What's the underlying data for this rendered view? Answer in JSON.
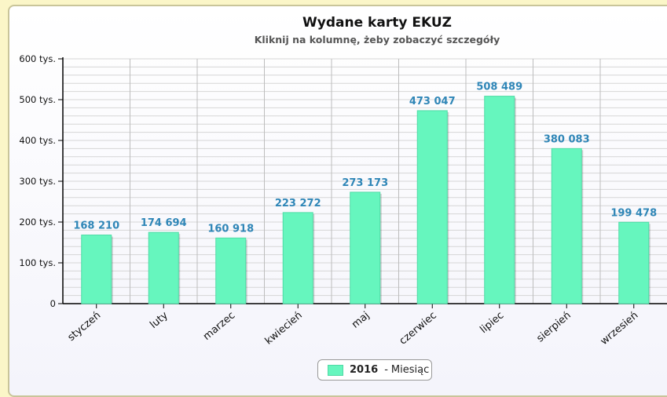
{
  "chart_data": {
    "type": "bar",
    "title": "Wydane karty EKUZ",
    "subtitle": "Kliknij na kolumnę, żeby zobaczyć szczegóły",
    "categories": [
      "styczeń",
      "luty",
      "marzec",
      "kwiecień",
      "maj",
      "czerwiec",
      "lipiec",
      "sierpień",
      "wrzesień"
    ],
    "series": [
      {
        "name": "2016",
        "values": [
          168210,
          174694,
          160918,
          223272,
          273173,
          473047,
          508489,
          380083,
          199478
        ],
        "labels": [
          "168 210",
          "174 694",
          "160 918",
          "223 272",
          "273 173",
          "473 047",
          "508 489",
          "380 083",
          "199 478"
        ]
      }
    ],
    "ylim": [
      0,
      600000
    ],
    "yticks": [
      {
        "value": 0,
        "label": "0"
      },
      {
        "value": 100000,
        "label": "100 tys."
      },
      {
        "value": 200000,
        "label": "200 tys."
      },
      {
        "value": 300000,
        "label": "300 tys."
      },
      {
        "value": 400000,
        "label": "400 tys."
      },
      {
        "value": 500000,
        "label": "500 tys."
      },
      {
        "value": 600000,
        "label": "600 tys."
      }
    ],
    "grid": true,
    "legend": {
      "position": "bottom",
      "series_label": "2016",
      "separator": "-",
      "text": "Miesiąc"
    },
    "colors": {
      "bar": "#66f6be",
      "bar_edge": "#4fdca6",
      "data_label": "#2f86b7",
      "grid": "#d6d6d6"
    }
  }
}
